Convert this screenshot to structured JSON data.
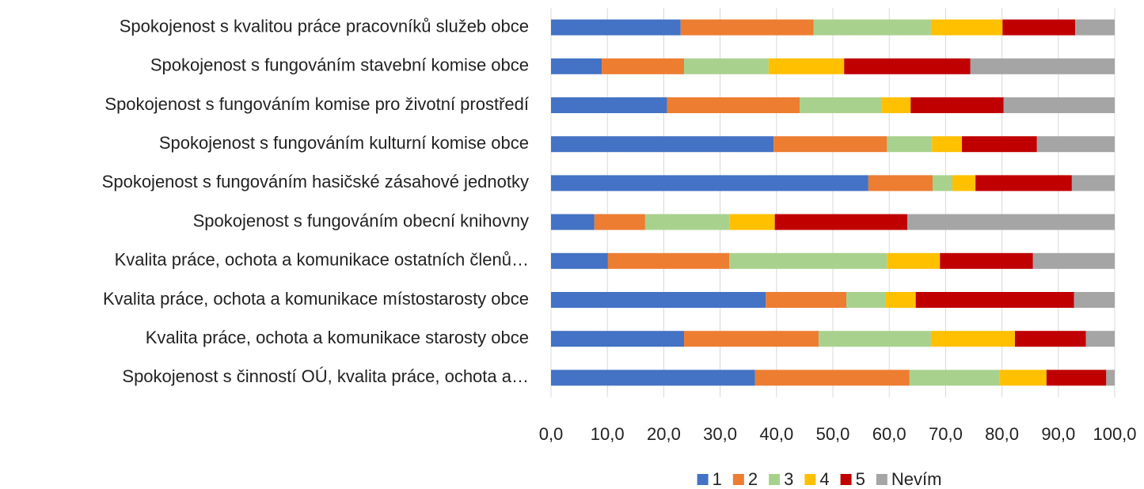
{
  "chart_data": {
    "type": "stacked-barh",
    "categories": [
      "Spokojenost s kvalitou práce pracovníků služeb obce",
      "Spokojenost s fungováním stavební komise obce",
      "Spokojenost s fungováním komise pro životní prostředí",
      "Spokojenost s fungováním kulturní komise obce",
      "Spokojenost s fungováním hasičské zásahové jednotky",
      "Spokojenost s fungováním obecní knihovny",
      "Kvalita práce, ochota a komunikace ostatních členů…",
      "Kvalita práce, ochota a komunikace místostarosty obce",
      "Kvalita práce, ochota a komunikace starosty obce",
      "Spokojenost s činností OÚ, kvalita práce, ochota a…"
    ],
    "series": [
      {
        "name": "1",
        "color": "#4472c4",
        "values": [
          23.0,
          9.0,
          20.6,
          39.5,
          56.3,
          7.7,
          10.1,
          38.1,
          23.6,
          36.2
        ]
      },
      {
        "name": "2",
        "color": "#ed7d31",
        "values": [
          23.6,
          14.6,
          23.5,
          20.1,
          11.4,
          9.0,
          21.5,
          14.3,
          23.9,
          27.4
        ]
      },
      {
        "name": "3",
        "color": "#a9d18e",
        "values": [
          20.8,
          15.0,
          14.6,
          8.0,
          3.5,
          15.0,
          28.0,
          7.0,
          19.9,
          16.0
        ]
      },
      {
        "name": "4",
        "color": "#ffc000",
        "values": [
          12.7,
          13.4,
          5.1,
          5.3,
          4.1,
          8.0,
          9.4,
          5.3,
          14.9,
          8.3
        ]
      },
      {
        "name": "5",
        "color": "#c00000",
        "values": [
          12.9,
          22.4,
          16.5,
          13.3,
          17.1,
          23.5,
          16.5,
          28.1,
          12.6,
          10.6
        ]
      },
      {
        "name": "Nevím",
        "color": "#a5a5a5",
        "values": [
          7.0,
          25.6,
          19.7,
          13.8,
          7.6,
          36.8,
          14.5,
          7.2,
          5.1,
          1.5
        ]
      }
    ],
    "xlim": [
      0,
      100
    ],
    "xticks": [
      {
        "value": 0,
        "label": "0,0"
      },
      {
        "value": 10,
        "label": "10,0"
      },
      {
        "value": 20,
        "label": "20,0"
      },
      {
        "value": 30,
        "label": "30,0"
      },
      {
        "value": 40,
        "label": "40,0"
      },
      {
        "value": 50,
        "label": "50,0"
      },
      {
        "value": 60,
        "label": "60,0"
      },
      {
        "value": 70,
        "label": "70,0"
      },
      {
        "value": 80,
        "label": "80,0"
      },
      {
        "value": 90,
        "label": "90,0"
      },
      {
        "value": 100,
        "label": "100,0"
      }
    ],
    "grid": true,
    "legend": "bottom"
  }
}
